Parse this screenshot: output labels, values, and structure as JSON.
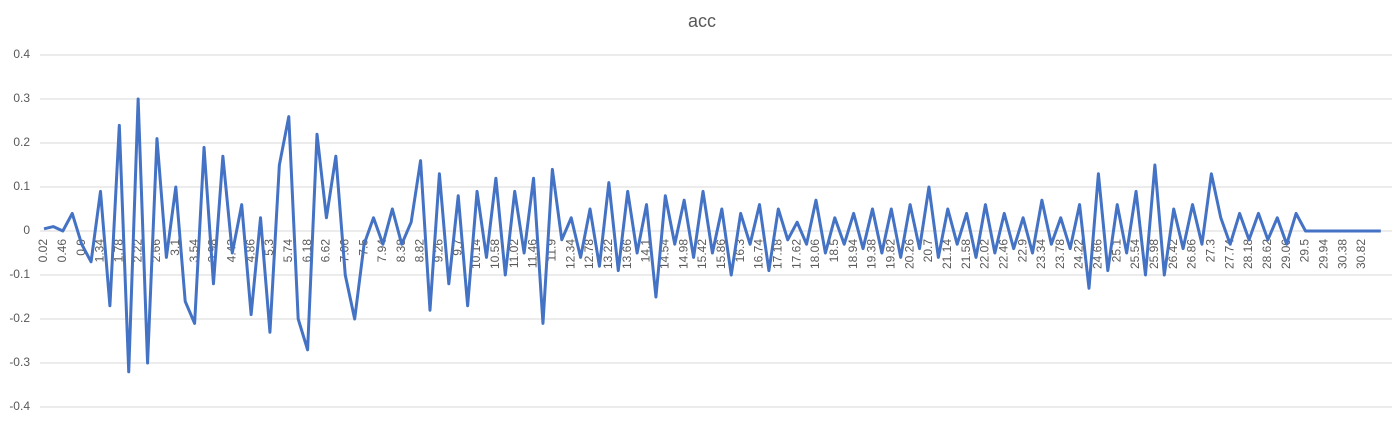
{
  "chart_data": {
    "type": "line",
    "title": "acc",
    "categories": [
      0.02,
      null,
      0.46,
      null,
      0.9,
      null,
      1.34,
      null,
      1.78,
      null,
      2.22,
      null,
      2.66,
      null,
      3.1,
      null,
      3.54,
      null,
      3.98,
      null,
      4.42,
      null,
      4.86,
      null,
      5.3,
      null,
      5.74,
      null,
      6.18,
      null,
      6.62,
      null,
      7.06,
      null,
      7.5,
      null,
      7.94,
      null,
      8.38,
      null,
      8.82,
      null,
      9.26,
      null,
      9.7,
      null,
      10.14,
      null,
      10.58,
      null,
      11.02,
      null,
      11.46,
      null,
      11.9,
      null,
      12.34,
      null,
      12.78,
      null,
      13.22,
      null,
      13.66,
      null,
      14.1,
      null,
      14.54,
      null,
      14.98,
      null,
      15.42,
      null,
      15.86,
      null,
      16.3,
      null,
      16.74,
      null,
      17.18,
      null,
      17.62,
      null,
      18.06,
      null,
      18.5,
      null,
      18.94,
      null,
      19.38,
      null,
      19.82,
      null,
      20.26,
      null,
      20.7,
      null,
      21.14,
      null,
      21.58,
      null,
      22.02,
      null,
      22.46,
      null,
      22.9,
      null,
      23.34,
      null,
      23.78,
      null,
      24.22,
      null,
      24.66,
      null,
      25.1,
      null,
      25.54,
      null,
      25.98,
      null,
      26.42,
      null,
      26.86,
      null,
      27.3,
      null,
      27.74,
      null,
      28.18,
      null,
      28.62,
      null,
      29.06,
      null,
      29.5,
      null,
      29.94,
      null,
      30.38,
      null,
      30.82,
      null,
      null
    ],
    "series": [
      {
        "name": "acc",
        "color": "#4472c4",
        "values": [
          0.005,
          0.01,
          0.0,
          0.04,
          -0.03,
          -0.07,
          0.09,
          -0.17,
          0.24,
          -0.32,
          0.3,
          -0.3,
          0.21,
          -0.06,
          0.1,
          -0.16,
          -0.21,
          0.19,
          -0.12,
          0.17,
          -0.05,
          0.06,
          -0.19,
          0.03,
          -0.23,
          0.15,
          0.26,
          -0.2,
          -0.27,
          0.22,
          0.03,
          0.17,
          -0.1,
          -0.2,
          -0.03,
          0.03,
          -0.03,
          0.05,
          -0.03,
          0.02,
          0.16,
          -0.18,
          0.13,
          -0.12,
          0.08,
          -0.17,
          0.09,
          -0.06,
          0.12,
          -0.1,
          0.09,
          -0.05,
          0.12,
          -0.21,
          0.14,
          -0.02,
          0.03,
          -0.06,
          0.05,
          -0.08,
          0.11,
          -0.09,
          0.09,
          -0.05,
          0.06,
          -0.15,
          0.08,
          -0.03,
          0.07,
          -0.06,
          0.09,
          -0.05,
          0.05,
          -0.1,
          0.04,
          -0.03,
          0.06,
          -0.09,
          0.05,
          -0.02,
          0.02,
          -0.03,
          0.07,
          -0.05,
          0.03,
          -0.03,
          0.04,
          -0.04,
          0.05,
          -0.05,
          0.05,
          -0.06,
          0.06,
          -0.04,
          0.1,
          -0.06,
          0.05,
          -0.03,
          0.04,
          -0.06,
          0.06,
          -0.05,
          0.04,
          -0.04,
          0.03,
          -0.05,
          0.07,
          -0.03,
          0.03,
          -0.04,
          0.06,
          -0.13,
          0.13,
          -0.09,
          0.06,
          -0.05,
          0.09,
          -0.1,
          0.15,
          -0.1,
          0.05,
          -0.04,
          0.06,
          -0.03,
          0.13,
          0.03,
          -0.03,
          0.04,
          -0.02,
          0.04,
          -0.02,
          0.03,
          -0.03,
          0.04,
          0.0,
          0.0,
          0.0,
          0.0,
          0.0,
          0.0,
          0.0,
          0.0,
          0.0
        ]
      }
    ],
    "ylim": [
      -0.4,
      0.4
    ],
    "yticks": [
      -0.4,
      -0.3,
      -0.2,
      -0.1,
      0,
      0.1,
      0.2,
      0.3,
      0.4
    ],
    "grid": true
  }
}
